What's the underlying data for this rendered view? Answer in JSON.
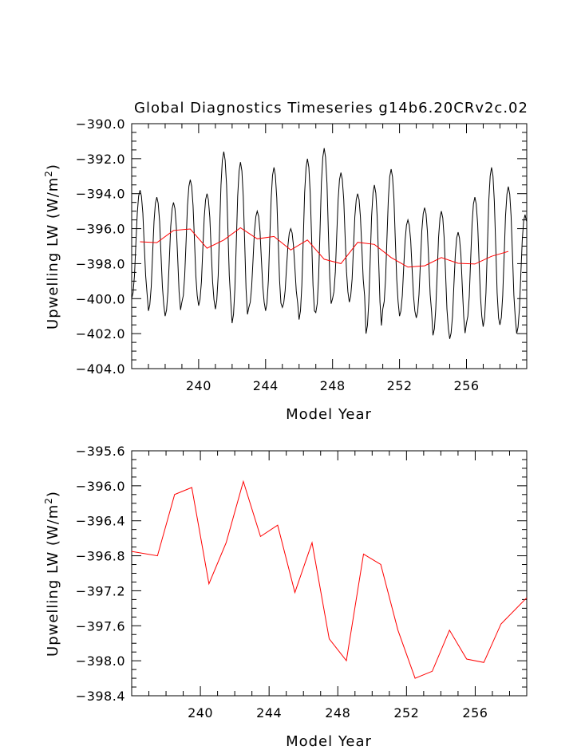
{
  "title": "Global Diagnostics Timeseries g14b6.20CRv2c.02",
  "colors": {
    "monthly": "#000000",
    "annual": "#ff0000",
    "axis": "#000000",
    "background": "#ffffff"
  },
  "chart_data": [
    {
      "type": "line",
      "title": "Global Diagnostics Timeseries g14b6.20CRv2c.02",
      "xlabel": "Model Year",
      "ylabel": "Upwelling LW (W/m²)",
      "ylabel_parts": {
        "main": "Upwelling LW (W/m",
        "sup": "2",
        "end": ")"
      },
      "xlim": [
        236.0,
        259.6
      ],
      "ylim": [
        -404.0,
        -390.0
      ],
      "xticks": [
        240,
        244,
        248,
        252,
        256
      ],
      "xtick_labels": [
        "240",
        "244",
        "248",
        "252",
        "256"
      ],
      "yticks": [
        -390.0,
        -392.0,
        -394.0,
        -396.0,
        -398.0,
        -400.0,
        -402.0,
        -404.0
      ],
      "ytick_labels": [
        "−390.0",
        "−392.0",
        "−394.0",
        "−396.0",
        "−398.0",
        "−400.0",
        "−402.0",
        "−404.0"
      ],
      "grid": false,
      "series": [
        {
          "color": "#000000",
          "x_start": 236.0,
          "x_step": 0.08333,
          "peaks": [
            -393.8,
            -394.2,
            -394.5,
            -393.2,
            -394.0,
            -391.6,
            -392.2,
            -395.0,
            -392.5,
            -396.0,
            -392.0,
            -391.4,
            -392.8,
            -394.0,
            -393.5,
            -392.6,
            -395.5,
            -394.8,
            -395.0,
            -396.2,
            -394.2,
            -392.5,
            -393.6,
            -395.2,
            -394.5,
            -395.4,
            -394.2,
            -394.8,
            -393.8,
            -395.4,
            -394.0,
            -393.2,
            -394.8,
            -393.9
          ],
          "troughs": [
            -400.0,
            -400.7,
            -401.0,
            -400.2,
            -400.4,
            -400.6,
            -401.4,
            -400.5,
            -400.7,
            -400.5,
            -401.2,
            -400.8,
            -400.0,
            -400.2,
            -402.0,
            -400.6,
            -401.0,
            -401.1,
            -402.1,
            -402.3,
            -401.4,
            -401.6,
            -401.5,
            -402.0,
            -401.9,
            -402.0,
            -401.5,
            -400.6
          ]
        },
        {
          "color": "#ff0000",
          "x": [
            236.5,
            237.5,
            238.5,
            239.5,
            240.5,
            241.5,
            242.5,
            243.5,
            244.5,
            245.5,
            246.5,
            247.5,
            248.5,
            249.5,
            250.5,
            251.5,
            252.5,
            253.5,
            254.5,
            255.5,
            256.5,
            257.5,
            258.5
          ],
          "y": [
            -396.75,
            -396.8,
            -396.1,
            -396.02,
            -397.12,
            -396.65,
            -395.95,
            -396.58,
            -396.45,
            -397.22,
            -396.65,
            -397.75,
            -398.0,
            -396.78,
            -396.9,
            -397.65,
            -398.2,
            -398.12,
            -397.65,
            -397.98,
            -398.02,
            -397.58,
            -397.3
          ]
        }
      ]
    },
    {
      "type": "line",
      "title": "",
      "xlabel": "Model Year",
      "ylabel": "Upwelling LW (W/m²)",
      "ylabel_parts": {
        "main": "Upwelling LW (W/m",
        "sup": "2",
        "end": ")"
      },
      "xlim": [
        236.0,
        259.0
      ],
      "ylim": [
        -398.4,
        -395.6
      ],
      "xticks": [
        240,
        244,
        248,
        252,
        256
      ],
      "xtick_labels": [
        "240",
        "244",
        "248",
        "252",
        "256"
      ],
      "yticks": [
        -395.6,
        -396.0,
        -396.4,
        -396.8,
        -397.2,
        -397.6,
        -398.0,
        -398.4
      ],
      "ytick_labels": [
        "−395.6",
        "−396.0",
        "−396.4",
        "−396.8",
        "−397.2",
        "−397.6",
        "−398.0",
        "−398.4"
      ],
      "grid": false,
      "series": [
        {
          "color": "#ff0000",
          "x": [
            236.0,
            237.5,
            238.5,
            239.5,
            240.5,
            241.5,
            242.5,
            243.5,
            244.5,
            245.5,
            246.5,
            247.5,
            248.5,
            249.5,
            250.5,
            251.5,
            252.5,
            253.5,
            254.5,
            255.5,
            256.5,
            257.5,
            259.0
          ],
          "y": [
            -396.75,
            -396.8,
            -396.1,
            -396.02,
            -397.12,
            -396.65,
            -395.95,
            -396.58,
            -396.45,
            -397.22,
            -396.65,
            -397.75,
            -398.0,
            -396.78,
            -396.9,
            -397.65,
            -398.2,
            -398.12,
            -397.65,
            -397.98,
            -398.02,
            -397.58,
            -397.28
          ]
        }
      ]
    }
  ]
}
